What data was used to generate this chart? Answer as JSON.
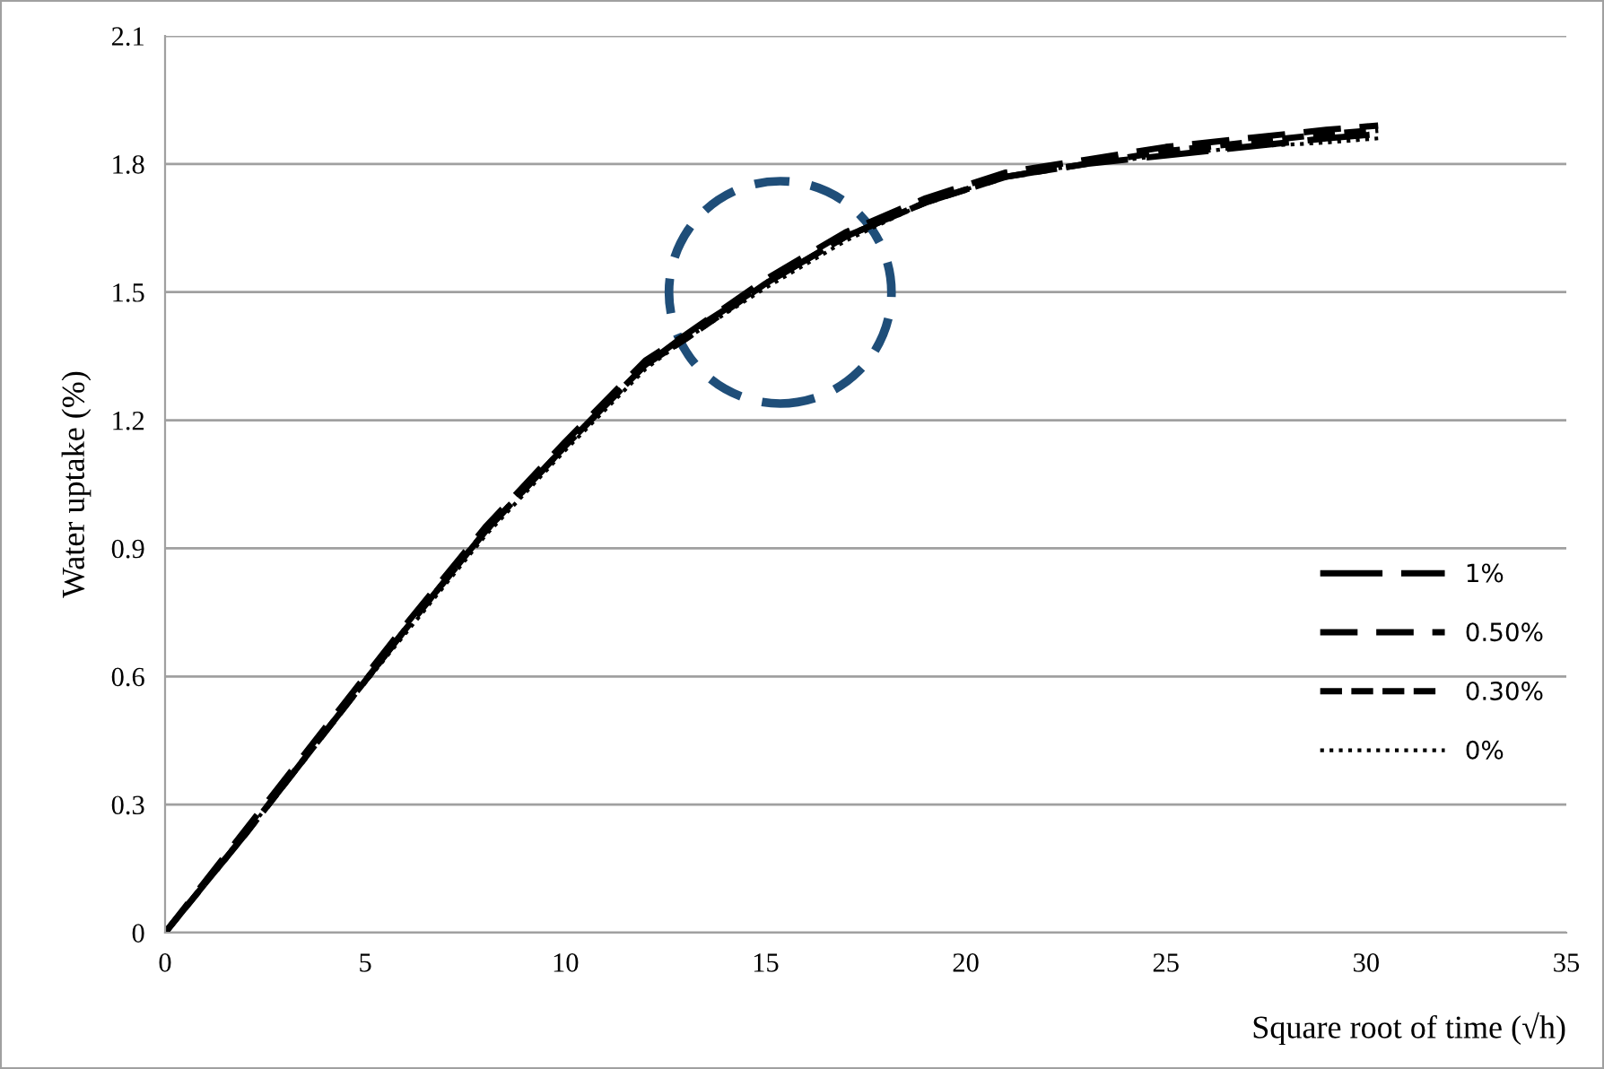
{
  "chart_data": {
    "type": "line",
    "xlabel": "Square root of time (√h)",
    "ylabel": "Water uptake (%)",
    "xlim": [
      0,
      35
    ],
    "xticks": [
      0,
      5,
      10,
      15,
      20,
      25,
      30,
      35
    ],
    "ylim": [
      0,
      2.1
    ],
    "yticks": [
      0,
      0.3,
      0.6,
      0.9,
      1.2,
      1.5,
      1.8,
      2.1
    ],
    "grid": "y",
    "legend": "right",
    "x": [
      0,
      2,
      4,
      6,
      8,
      10,
      12,
      13,
      15,
      17,
      19,
      21,
      23,
      25,
      27,
      29,
      30.3
    ],
    "series": [
      {
        "name": "1%",
        "color": "#000000",
        "line_style": "dashed",
        "values": [
          0,
          0.23,
          0.47,
          0.71,
          0.94,
          1.14,
          1.33,
          1.4,
          1.52,
          1.63,
          1.71,
          1.77,
          1.8,
          1.82,
          1.84,
          1.86,
          1.87
        ]
      },
      {
        "name": "0.50%",
        "color": "#000000",
        "line_style": "dashed",
        "values": [
          0,
          0.24,
          0.48,
          0.72,
          0.95,
          1.15,
          1.34,
          1.4,
          1.53,
          1.64,
          1.72,
          1.78,
          1.81,
          1.84,
          1.86,
          1.88,
          1.89
        ]
      },
      {
        "name": "0.30%",
        "color": "#000000",
        "line_style": "dashed",
        "values": [
          0,
          0.23,
          0.47,
          0.71,
          0.94,
          1.14,
          1.33,
          1.39,
          1.52,
          1.63,
          1.71,
          1.77,
          1.8,
          1.83,
          1.85,
          1.87,
          1.88
        ]
      },
      {
        "name": "0%",
        "color": "#000000",
        "line_style": "dotted",
        "values": [
          0,
          0.23,
          0.47,
          0.7,
          0.93,
          1.13,
          1.32,
          1.39,
          1.51,
          1.62,
          1.71,
          1.77,
          1.8,
          1.82,
          1.84,
          1.85,
          1.86
        ]
      }
    ]
  }
}
